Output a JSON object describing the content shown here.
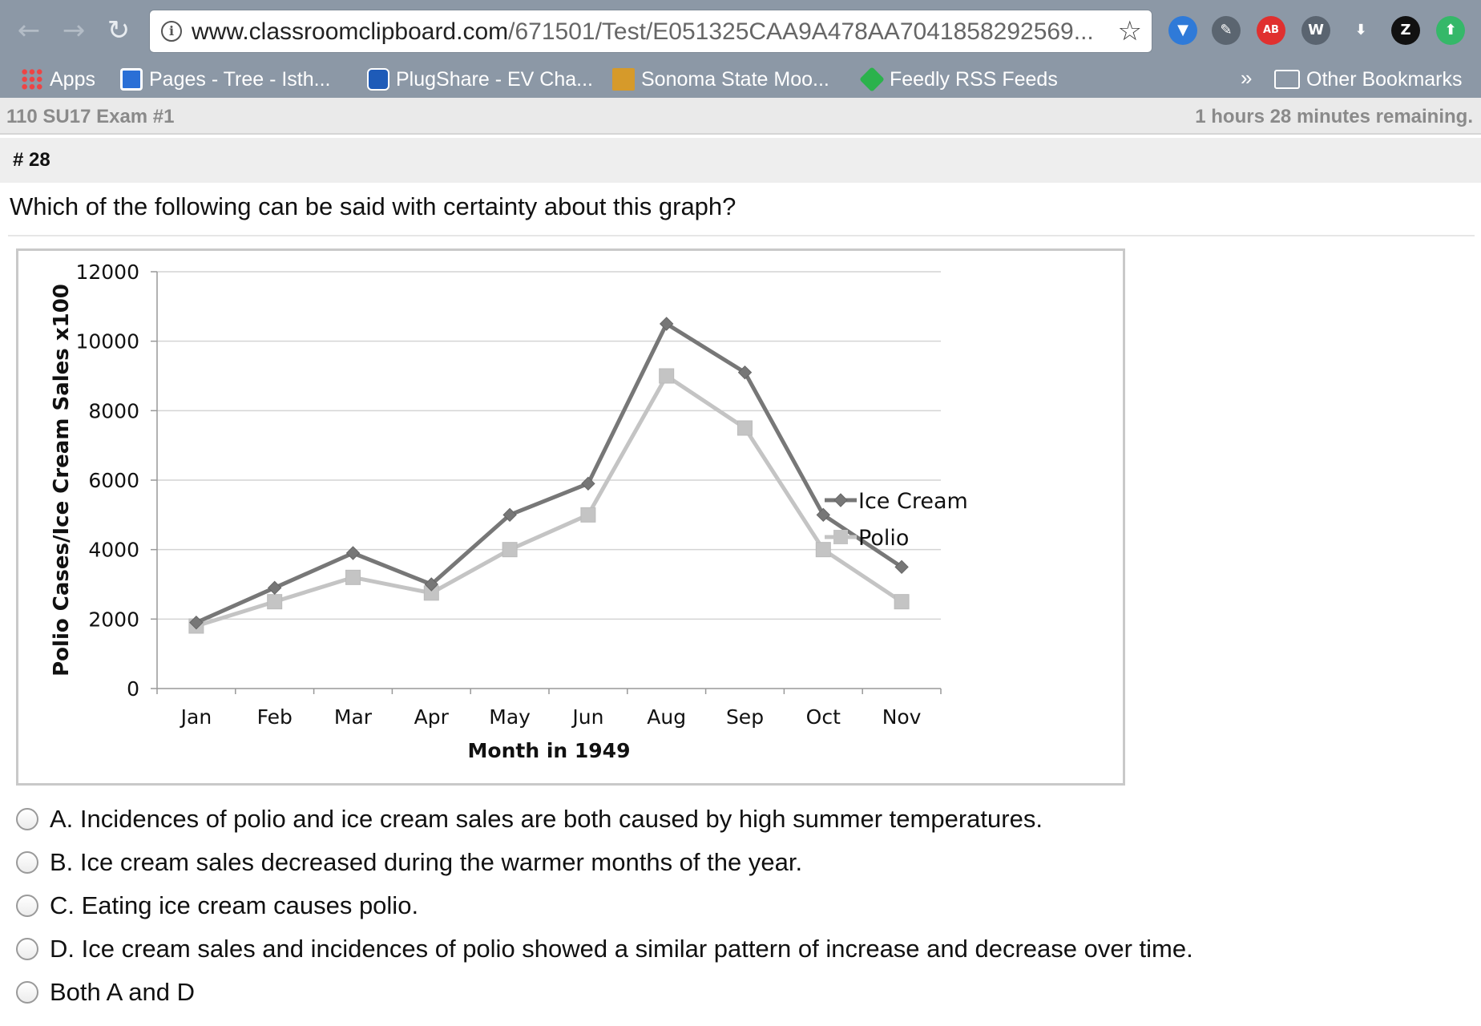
{
  "browser": {
    "back_glyph": "←",
    "forward_glyph": "→",
    "reload_glyph": "↻",
    "info_glyph": "i",
    "url_domain": "www.classroomclipboard.com",
    "url_path": "/671501/Test/E051325CAA9A478AA7041858292569...",
    "star_glyph": "☆",
    "extensions": [
      {
        "name": "wunderlist-icon",
        "glyph": "▼",
        "color": "#2f7ad8"
      },
      {
        "name": "evernote-icon",
        "glyph": "✎",
        "color": "#5b6570"
      },
      {
        "name": "adblock-icon",
        "glyph": "AB",
        "color": "#e0302f"
      },
      {
        "name": "wordpress-icon",
        "glyph": "W",
        "color": "#5a6470"
      },
      {
        "name": "download-icon",
        "glyph": "⬇",
        "color": "#8c98a6"
      },
      {
        "name": "zotero-icon",
        "glyph": "Z",
        "color": "#111111"
      },
      {
        "name": "update-icon",
        "glyph": "⬆",
        "color": "#35b869"
      }
    ]
  },
  "bookmarks": {
    "apps": "Apps",
    "pages": "Pages - Tree - Isth...",
    "plugshare": "PlugShare - EV Cha...",
    "sonoma": "Sonoma State Moo...",
    "feedly": "Feedly RSS Feeds",
    "more": "»",
    "other": "Other Bookmarks"
  },
  "exam": {
    "title": "110 SU17 Exam #1",
    "time_remaining": "1 hours 28 minutes remaining."
  },
  "question": {
    "number": "# 28",
    "text": "Which of the following can be said with certainty about this graph?"
  },
  "chart_data": {
    "type": "line",
    "categories": [
      "Jan",
      "Feb",
      "Mar",
      "Apr",
      "May",
      "Jun",
      "Aug",
      "Sep",
      "Oct",
      "Nov"
    ],
    "series": [
      {
        "name": "Ice Cream",
        "color": "#777777",
        "marker": "diamond",
        "values": [
          1900,
          2900,
          3900,
          3000,
          5000,
          5900,
          10500,
          9100,
          5000,
          3500
        ]
      },
      {
        "name": "Polio",
        "color": "#c4c4c4",
        "marker": "square",
        "values": [
          1800,
          2500,
          3200,
          2750,
          4000,
          5000,
          9000,
          7500,
          4000,
          2500
        ]
      }
    ],
    "xlabel": "Month in 1949",
    "ylabel": "Polio Cases/Ice Cream Sales x100",
    "ylim": [
      0,
      12000
    ],
    "yticks": [
      0,
      2000,
      4000,
      6000,
      8000,
      10000,
      12000
    ],
    "grid": true,
    "legend": "right"
  },
  "answers": [
    "A. Incidences of polio and ice cream sales are both caused by high summer temperatures.",
    "B. Ice cream sales decreased during the warmer months of the year.",
    "C. Eating ice cream causes polio.",
    "D. Ice cream sales and incidences of polio showed a similar pattern of increase and decrease over time.",
    "Both A and D"
  ]
}
